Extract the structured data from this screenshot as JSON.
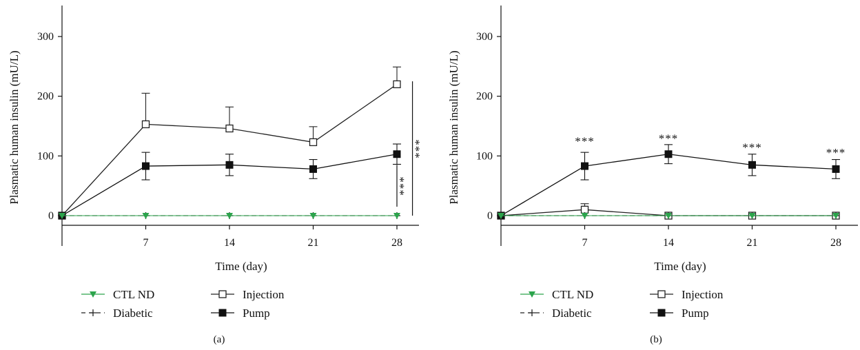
{
  "colors": {
    "ctl_nd": "#2ca44c",
    "diabetic": "#222222",
    "injection": "#222222",
    "pump": "#111111"
  },
  "legend": {
    "ctl_nd": "CTL ND",
    "diabetic": "Diabetic",
    "injection": "Injection",
    "pump": "Pump"
  },
  "chart_data": [
    {
      "panel_label": "(a)",
      "type": "line",
      "xlabel": "Time (day)",
      "ylabel": "Plasmatic human insulin (mU/L)",
      "x": [
        0,
        7,
        14,
        21,
        28
      ],
      "xticks": [
        "7",
        "14",
        "21",
        "28"
      ],
      "yticks": [
        "0",
        "100",
        "200",
        "300"
      ],
      "xlim": [
        0,
        30.5
      ],
      "ylim": [
        -25,
        350
      ],
      "series": [
        {
          "name": "CTL ND",
          "marker": "triangle-down",
          "values": [
            0,
            0,
            0,
            0,
            0
          ]
        },
        {
          "name": "Diabetic",
          "marker": "plus",
          "style": "dashed",
          "values": [
            0,
            0,
            0,
            0,
            0
          ]
        },
        {
          "name": "Injection",
          "marker": "open-square",
          "values": [
            0,
            153,
            146,
            123,
            220
          ],
          "errors": [
            0,
            52,
            36,
            26,
            29
          ]
        },
        {
          "name": "Pump",
          "marker": "filled-square",
          "values": [
            0,
            83,
            85,
            78,
            103
          ],
          "errors": [
            0,
            23,
            18,
            16,
            17
          ]
        }
      ],
      "annotations": [
        {
          "text": "***",
          "x": 28,
          "y_from": 15,
          "y_to": 85
        },
        {
          "text": "***",
          "x": 29.3,
          "y_from": 0,
          "y_to": 225
        }
      ]
    },
    {
      "panel_label": "(b)",
      "type": "line",
      "xlabel": "Time (day)",
      "ylabel": "Plasmatic human insulin (mU/L)",
      "x": [
        0,
        7,
        14,
        21,
        28
      ],
      "xticks": [
        "7",
        "14",
        "21",
        "28"
      ],
      "yticks": [
        "0",
        "100",
        "200",
        "300"
      ],
      "xlim": [
        0,
        30.5
      ],
      "ylim": [
        -25,
        350
      ],
      "series": [
        {
          "name": "CTL ND",
          "marker": "triangle-down",
          "values": [
            0,
            0,
            0,
            0,
            0
          ]
        },
        {
          "name": "Diabetic",
          "marker": "plus",
          "style": "dashed",
          "values": [
            0,
            0,
            0,
            0,
            0
          ]
        },
        {
          "name": "Injection",
          "marker": "open-square",
          "values": [
            0,
            10,
            0,
            0,
            0
          ],
          "errors": [
            0,
            10,
            0,
            0,
            0
          ]
        },
        {
          "name": "Pump",
          "marker": "filled-square",
          "values": [
            0,
            83,
            103,
            85,
            78
          ],
          "errors": [
            0,
            23,
            16,
            18,
            16
          ]
        }
      ],
      "annotations": [
        {
          "text": "***",
          "x": 7,
          "y": 118
        },
        {
          "text": "***",
          "x": 14,
          "y": 123
        },
        {
          "text": "***",
          "x": 21,
          "y": 108
        },
        {
          "text": "***",
          "x": 28,
          "y": 99
        }
      ]
    }
  ]
}
